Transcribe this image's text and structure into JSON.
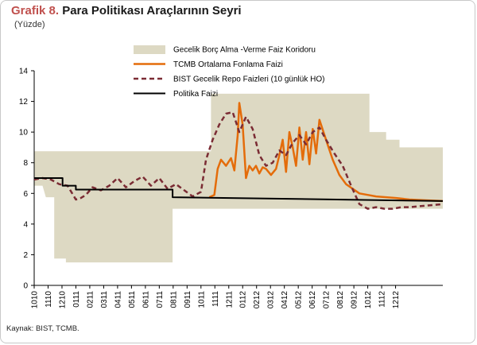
{
  "title": {
    "prefix": "Grafik 8.",
    "text": "Para Politikası Araçlarının Seyri"
  },
  "subtitle": "(Yüzde)",
  "source": "Kaynak: BIST, TCMB.",
  "colors": {
    "corridor": "#ddd9c3",
    "funding": "#e46c0a",
    "repo": "#7b2c34",
    "policy": "#000000",
    "title_accent": "#c0504d"
  },
  "chart_data": {
    "type": "line",
    "title": "Para Politikası Araçlarının Seyri",
    "ylabel": "(Yüzde)",
    "ylim": [
      0,
      14
    ],
    "yticks": [
      0,
      2,
      4,
      6,
      8,
      10,
      12,
      14
    ],
    "xlim": [
      2010.75,
      2013.2
    ],
    "xticks": [
      {
        "label": "1010",
        "x": 2010.75
      },
      {
        "label": "1110",
        "x": 2010.8333
      },
      {
        "label": "1210",
        "x": 2010.9167
      },
      {
        "label": "0111",
        "x": 2011.0
      },
      {
        "label": "0211",
        "x": 2011.0833
      },
      {
        "label": "0311",
        "x": 2011.1667
      },
      {
        "label": "0411",
        "x": 2011.25
      },
      {
        "label": "0511",
        "x": 2011.3333
      },
      {
        "label": "0611",
        "x": 2011.4167
      },
      {
        "label": "0711",
        "x": 2011.5
      },
      {
        "label": "0811",
        "x": 2011.5833
      },
      {
        "label": "0911",
        "x": 2011.6667
      },
      {
        "label": "1011",
        "x": 2011.75
      },
      {
        "label": "1111",
        "x": 2011.8333
      },
      {
        "label": "1211",
        "x": 2011.9167
      },
      {
        "label": "0112",
        "x": 2012.0
      },
      {
        "label": "0212",
        "x": 2012.0833
      },
      {
        "label": "0312",
        "x": 2012.1667
      },
      {
        "label": "0412",
        "x": 2012.25
      },
      {
        "label": "0512",
        "x": 2012.3333
      },
      {
        "label": "0612",
        "x": 2012.4167
      },
      {
        "label": "0712",
        "x": 2012.5
      },
      {
        "label": "0812",
        "x": 2012.5833
      },
      {
        "label": "0912",
        "x": 2012.6667
      },
      {
        "label": "1012",
        "x": 2012.75
      },
      {
        "label": "1112",
        "x": 2012.8333
      },
      {
        "label": "1212",
        "x": 2012.9167
      }
    ],
    "legend_placement": "top-center",
    "grid": false,
    "series": [
      {
        "name": "Gecelik Borç Alma -Verme Faiz Koridoru",
        "kind": "band",
        "x": [
          2010.75,
          2010.8,
          2010.8,
          2010.82,
          2010.82,
          2010.87,
          2010.87,
          2010.94,
          2010.94,
          2011.58,
          2011.58,
          2011.75,
          2011.75,
          2011.81,
          2011.81,
          2012.76,
          2012.76,
          2012.86,
          2012.86,
          2012.94,
          2012.94,
          2013.04,
          2013.04,
          2013.2
        ],
        "lower": [
          6.5,
          6.5,
          6.5,
          5.75,
          5.75,
          5.75,
          1.75,
          1.75,
          1.5,
          1.5,
          5.0,
          5.0,
          5.0,
          5.0,
          5.0,
          5.0,
          5.0,
          5.0,
          5.0,
          5.0,
          5.0,
          5.0,
          5.0,
          5.0
        ],
        "upper": [
          8.75,
          8.75,
          8.75,
          8.75,
          8.75,
          8.75,
          8.75,
          8.75,
          8.75,
          8.75,
          8.75,
          8.75,
          8.75,
          8.75,
          12.5,
          12.5,
          10.0,
          10.0,
          9.5,
          9.5,
          9.0,
          9.0,
          9.0,
          9.0
        ]
      },
      {
        "name": "TCMB Ortalama Fonlama Faizi",
        "kind": "line",
        "x": [
          2011.8,
          2011.83,
          2011.85,
          2011.87,
          2011.9,
          2011.93,
          2011.95,
          2011.97,
          2011.98,
          2012.0,
          2012.02,
          2012.04,
          2012.06,
          2012.08,
          2012.1,
          2012.12,
          2012.14,
          2012.17,
          2012.2,
          2012.22,
          2012.24,
          2012.26,
          2012.28,
          2012.3,
          2012.32,
          2012.34,
          2012.36,
          2012.38,
          2012.4,
          2012.42,
          2012.44,
          2012.46,
          2012.5,
          2012.54,
          2012.58,
          2012.62,
          2012.66,
          2012.7,
          2012.75,
          2012.8,
          2012.86,
          2012.92,
          2013.0,
          2013.1,
          2013.2
        ],
        "y": [
          5.75,
          5.9,
          7.6,
          8.2,
          7.8,
          8.3,
          7.5,
          9.8,
          11.9,
          10.5,
          7.0,
          7.8,
          7.5,
          7.8,
          7.3,
          7.7,
          7.6,
          7.2,
          7.6,
          8.5,
          9.5,
          7.4,
          10.0,
          9.0,
          7.8,
          10.3,
          8.2,
          10.0,
          7.9,
          10.2,
          8.6,
          10.8,
          9.5,
          8.2,
          7.2,
          6.6,
          6.3,
          6.0,
          5.9,
          5.8,
          5.75,
          5.7,
          5.6,
          5.55,
          5.5
        ]
      },
      {
        "name": "BIST Gecelik Repo Faizleri (10 günlük HO)",
        "kind": "line",
        "x": [
          2010.75,
          2010.8,
          2010.85,
          2010.9,
          2010.95,
          2011.0,
          2011.03,
          2011.06,
          2011.1,
          2011.15,
          2011.2,
          2011.25,
          2011.3,
          2011.35,
          2011.4,
          2011.45,
          2011.5,
          2011.55,
          2011.6,
          2011.65,
          2011.7,
          2011.75,
          2011.78,
          2011.82,
          2011.86,
          2011.9,
          2011.94,
          2011.98,
          2012.02,
          2012.06,
          2012.1,
          2012.14,
          2012.18,
          2012.22,
          2012.26,
          2012.3,
          2012.34,
          2012.38,
          2012.42,
          2012.46,
          2012.5,
          2012.55,
          2012.6,
          2012.65,
          2012.7,
          2012.75,
          2012.8,
          2012.85,
          2012.9,
          2012.95,
          2013.0,
          2013.1,
          2013.2
        ],
        "y": [
          6.9,
          7.0,
          6.9,
          6.6,
          6.5,
          5.6,
          5.7,
          5.9,
          6.4,
          6.2,
          6.5,
          7.0,
          6.4,
          6.8,
          7.1,
          6.5,
          7.0,
          6.3,
          6.6,
          6.2,
          5.8,
          6.1,
          8.2,
          9.5,
          10.5,
          11.2,
          11.3,
          10.0,
          11.0,
          10.2,
          8.5,
          7.8,
          8.0,
          8.8,
          8.5,
          9.3,
          9.8,
          9.2,
          10.0,
          10.3,
          9.5,
          8.6,
          7.8,
          6.5,
          5.3,
          5.0,
          5.1,
          5.0,
          5.0,
          5.1,
          5.1,
          5.2,
          5.3
        ]
      },
      {
        "name": "Politika Faizi",
        "kind": "step",
        "x": [
          2010.75,
          2010.92,
          2010.92,
          2011.0,
          2011.0,
          2011.13,
          2011.13,
          2011.58,
          2011.58,
          2013.2
        ],
        "y": [
          7.0,
          7.0,
          6.5,
          6.5,
          6.25,
          6.25,
          6.25,
          6.25,
          5.75,
          5.5
        ]
      }
    ]
  }
}
